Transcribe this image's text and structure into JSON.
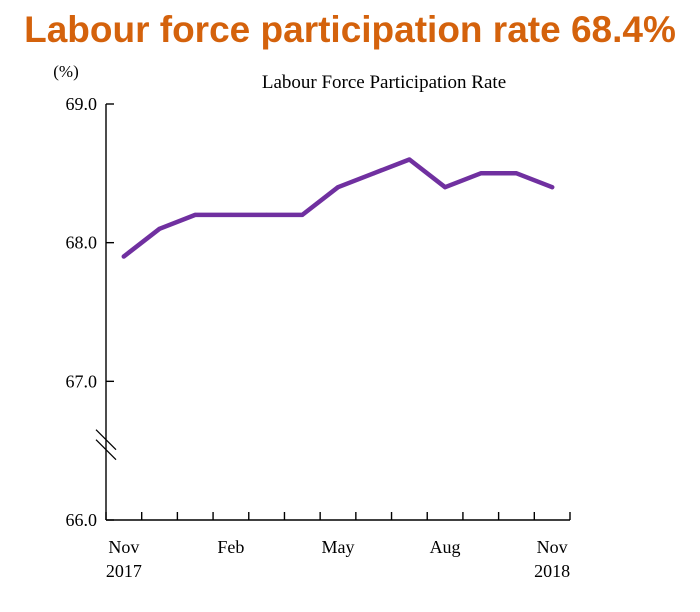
{
  "headline": "Labour force participation rate 68.4%",
  "chart_data": {
    "type": "line",
    "title": "Labour Force Participation Rate",
    "y_unit": "(%)",
    "ylim": [
      66.0,
      69.0
    ],
    "yticks": [
      "69.0",
      "68.0",
      "67.0",
      "66.0"
    ],
    "ytick_values": [
      69.0,
      68.0,
      67.0,
      66.0
    ],
    "y_axis_break": true,
    "x": [
      "Nov 2017",
      "Dec 2017",
      "Jan 2018",
      "Feb 2018",
      "Mar 2018",
      "Apr 2018",
      "May 2018",
      "Jun 2018",
      "Jul 2018",
      "Aug 2018",
      "Sep 2018",
      "Oct 2018",
      "Nov 2018"
    ],
    "x_tick_labels": [
      {
        "month": "Nov",
        "year": "2017"
      },
      {
        "month": "Feb",
        "year": ""
      },
      {
        "month": "May",
        "year": ""
      },
      {
        "month": "Aug",
        "year": ""
      },
      {
        "month": "Nov",
        "year": "2018"
      }
    ],
    "x_tick_label_indices": [
      0,
      3,
      6,
      9,
      12
    ],
    "series": [
      {
        "values": [
          67.9,
          68.1,
          68.2,
          68.2,
          68.2,
          68.2,
          68.4,
          68.5,
          68.6,
          68.4,
          68.5,
          68.5,
          68.4
        ],
        "color": "#7030a0"
      }
    ],
    "grid": false,
    "axis_color": "#000000"
  }
}
